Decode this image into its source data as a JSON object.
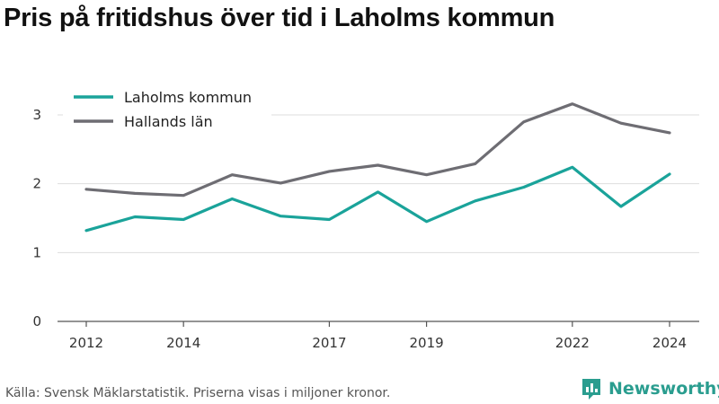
{
  "title": "Pris på fritidshus över tid i Laholms kommun",
  "footer": {
    "source": "Källa: Svensk Mäklarstatistik. Priserna visas i miljoner kronor.",
    "brand": "Newsworthy",
    "logo_icon": "bar-chart-logo-icon"
  },
  "chart_data": {
    "type": "line",
    "title": "Pris på fritidshus över tid i Laholms kommun",
    "xlabel": "",
    "ylabel": "",
    "x": [
      2012,
      2013,
      2014,
      2015,
      2016,
      2017,
      2018,
      2019,
      2020,
      2021,
      2022,
      2023,
      2024
    ],
    "x_tick_labels": [
      "2012",
      "2014",
      "2017",
      "2019",
      "2022",
      "2024"
    ],
    "x_ticks": [
      2012,
      2014,
      2017,
      2019,
      2022,
      2024
    ],
    "y_ticks": [
      0,
      1,
      2,
      3
    ],
    "y_tick_labels": [
      "0",
      "1",
      "2",
      "3"
    ],
    "xlim": [
      2011.7,
      2024.3
    ],
    "ylim": [
      0,
      3.3
    ],
    "grid": "horizontal",
    "legend_placement": "top-left",
    "series": [
      {
        "name": "Laholms kommun",
        "color": "#1aa39a",
        "values": [
          1.32,
          1.52,
          1.48,
          1.78,
          1.53,
          1.48,
          1.88,
          1.45,
          1.75,
          1.95,
          2.24,
          1.67,
          2.14
        ]
      },
      {
        "name": "Hallands län",
        "color": "#6e6d73",
        "values": [
          1.92,
          1.86,
          1.83,
          2.13,
          2.01,
          2.18,
          2.27,
          2.13,
          2.29,
          2.9,
          3.16,
          2.88,
          2.74
        ]
      }
    ]
  }
}
